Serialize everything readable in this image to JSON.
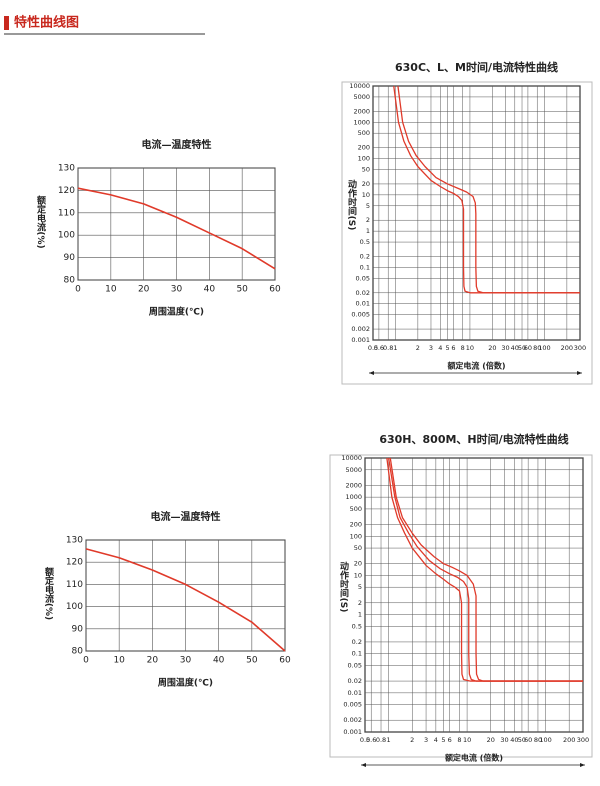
{
  "header": {
    "title": "特性曲线图"
  },
  "chart_data": [
    {
      "type": "line",
      "title": "电流—温度特性",
      "x_label": "周围温度(℃)",
      "y_label": "额定电流(%)",
      "x": [
        0,
        10,
        20,
        30,
        40,
        50,
        60
      ],
      "xlim": [
        0,
        60
      ],
      "ylim": [
        80,
        130
      ],
      "xticks": [
        0,
        10,
        20,
        30,
        40,
        50,
        60
      ],
      "yticks": [
        80,
        90,
        100,
        110,
        120,
        130
      ],
      "grid": true,
      "series": [
        {
          "color": "#e03a2a",
          "values": [
            121,
            118,
            114,
            108,
            101,
            94,
            85
          ]
        }
      ]
    },
    {
      "type": "line",
      "title": "630C、L、M时间/电流特性曲线",
      "x_label": "额定电流 (倍数)",
      "y_label": "动作时间(S)",
      "xscale": "log",
      "yscale": "log",
      "xlim": [
        0.5,
        300
      ],
      "ylim": [
        0.001,
        10000
      ],
      "xticks": [
        0.5,
        0.6,
        0.8,
        1,
        2,
        3,
        4,
        5,
        6,
        8,
        10,
        20,
        30,
        40,
        50,
        60,
        80,
        100,
        200,
        300
      ],
      "yticks": [
        0.001,
        0.002,
        0.005,
        0.01,
        0.02,
        0.05,
        0.1,
        0.2,
        0.5,
        1,
        2,
        5,
        10,
        20,
        50,
        100,
        200,
        500,
        1000,
        2000,
        5000,
        10000
      ],
      "grid": true,
      "series": [
        {
          "color": "#e03a2a",
          "x": [
            0.95,
            1.1,
            1.3,
            1.6,
            2,
            3,
            4,
            5,
            6,
            7,
            7.8,
            8.2,
            8.2,
            8.3,
            8.6,
            10,
            300
          ],
          "values": [
            10000,
            1000,
            300,
            120,
            60,
            25,
            17,
            13,
            11,
            9,
            7,
            4,
            0.1,
            0.03,
            0.022,
            0.02,
            0.02
          ]
        },
        {
          "color": "#e03a2a",
          "x": [
            1.08,
            1.25,
            1.5,
            1.9,
            2.5,
            3.5,
            5,
            7,
            9,
            11,
            11.8,
            12,
            12,
            12.2,
            12.8,
            15,
            300
          ],
          "values": [
            10000,
            1000,
            300,
            120,
            60,
            30,
            20,
            15,
            12,
            9,
            6,
            3,
            0.1,
            0.03,
            0.022,
            0.02,
            0.02
          ]
        }
      ]
    },
    {
      "type": "line",
      "title": "电流—温度特性",
      "x_label": "周围温度(℃)",
      "y_label": "额定电流(%)",
      "x": [
        0,
        10,
        20,
        30,
        40,
        50,
        60
      ],
      "xlim": [
        0,
        60
      ],
      "ylim": [
        80,
        130
      ],
      "xticks": [
        0,
        10,
        20,
        30,
        40,
        50,
        60
      ],
      "yticks": [
        80,
        90,
        100,
        110,
        120,
        130
      ],
      "grid": true,
      "series": [
        {
          "color": "#e03a2a",
          "values": [
            126,
            122,
            116.5,
            110,
            102,
            93,
            80
          ]
        }
      ]
    },
    {
      "type": "line",
      "title": "630H、800M、H时间/电流特性曲线",
      "x_label": "额定电流 (倍数)",
      "y_label": "动作时间(S)",
      "xscale": "log",
      "yscale": "log",
      "xlim": [
        0.5,
        300
      ],
      "ylim": [
        0.001,
        10000
      ],
      "xticks": [
        0.5,
        0.6,
        0.8,
        1,
        2,
        3,
        4,
        5,
        6,
        8,
        10,
        20,
        30,
        40,
        50,
        60,
        80,
        100,
        200,
        300
      ],
      "yticks": [
        0.001,
        0.002,
        0.005,
        0.01,
        0.02,
        0.05,
        0.1,
        0.2,
        0.5,
        1,
        2,
        5,
        10,
        20,
        50,
        100,
        200,
        500,
        1000,
        2000,
        5000,
        10000
      ],
      "grid": true,
      "series": [
        {
          "color": "#e03a2a",
          "x": [
            0.95,
            1.1,
            1.3,
            1.6,
            2,
            3,
            4,
            5,
            6,
            7,
            8,
            8.5,
            8.5,
            8.6,
            9,
            11,
            300
          ],
          "values": [
            10000,
            1000,
            300,
            120,
            50,
            18,
            11,
            8,
            6,
            5,
            4,
            2,
            0.1,
            0.03,
            0.022,
            0.02,
            0.02
          ]
        },
        {
          "color": "#e03a2a",
          "x": [
            1.0,
            1.2,
            1.4,
            1.8,
            2.3,
            3.3,
            4.5,
            6,
            7.5,
            9,
            10,
            10.5,
            10.5,
            10.7,
            11.3,
            13,
            300
          ],
          "values": [
            10000,
            1000,
            300,
            120,
            55,
            24,
            15,
            11,
            9,
            7,
            5,
            2.5,
            0.1,
            0.03,
            0.022,
            0.02,
            0.02
          ]
        },
        {
          "color": "#e03a2a",
          "x": [
            1.05,
            1.25,
            1.5,
            2,
            2.6,
            3.8,
            5,
            6.5,
            8,
            10,
            12,
            13,
            13,
            13.2,
            14,
            16,
            300
          ],
          "values": [
            10000,
            1000,
            300,
            120,
            60,
            30,
            20,
            16,
            13,
            10,
            6,
            3,
            0.1,
            0.03,
            0.022,
            0.02,
            0.02
          ]
        }
      ]
    }
  ]
}
